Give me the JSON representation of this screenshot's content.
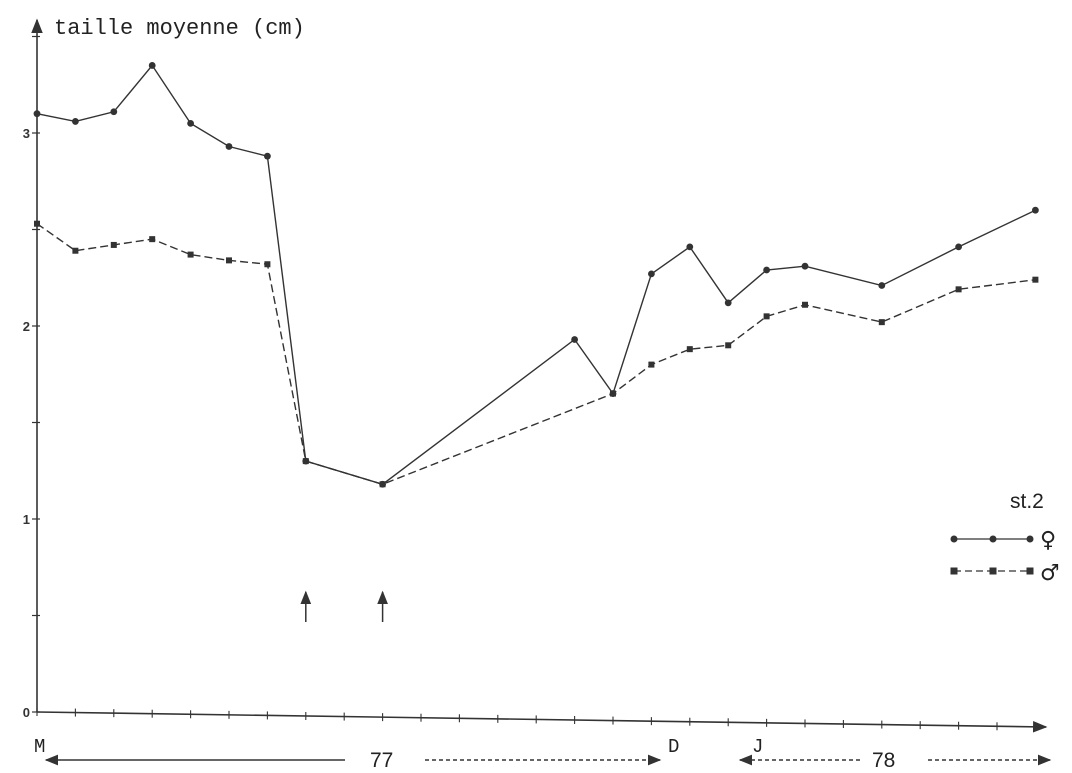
{
  "chart_data": {
    "type": "line",
    "ylabel": "taille moyenne (cm)",
    "yticks": [
      "0",
      "1",
      "2",
      "3"
    ],
    "ylim": [
      0,
      3.6
    ],
    "x_markers": [
      "M",
      "D",
      "J"
    ],
    "x_years": [
      "77",
      "78"
    ],
    "station_label": "st.2",
    "grid": false,
    "legend_position": "right",
    "event_markers_x": [
      7,
      9
    ],
    "series": [
      {
        "name": "♀",
        "marker": "circle",
        "line_style": "solid",
        "color": "#333333",
        "x": [
          0,
          1,
          2,
          3,
          4,
          5,
          6,
          7,
          9,
          14,
          15,
          16,
          17,
          18,
          19,
          20,
          22,
          24,
          26
        ],
        "values": [
          3.1,
          3.06,
          3.11,
          3.35,
          3.05,
          2.93,
          2.88,
          1.3,
          1.18,
          1.93,
          1.65,
          2.27,
          2.41,
          2.12,
          2.29,
          2.31,
          2.21,
          2.41,
          2.6
        ]
      },
      {
        "name": "♂",
        "marker": "square",
        "line_style": "dashed",
        "color": "#333333",
        "x": [
          0,
          1,
          2,
          3,
          4,
          5,
          6,
          7,
          9,
          15,
          16,
          17,
          18,
          19,
          20,
          22,
          24,
          26
        ],
        "values": [
          2.53,
          2.39,
          2.42,
          2.45,
          2.37,
          2.34,
          2.32,
          1.3,
          1.18,
          1.65,
          1.8,
          1.88,
          1.9,
          2.05,
          2.11,
          2.02,
          2.19,
          2.24
        ]
      }
    ]
  }
}
